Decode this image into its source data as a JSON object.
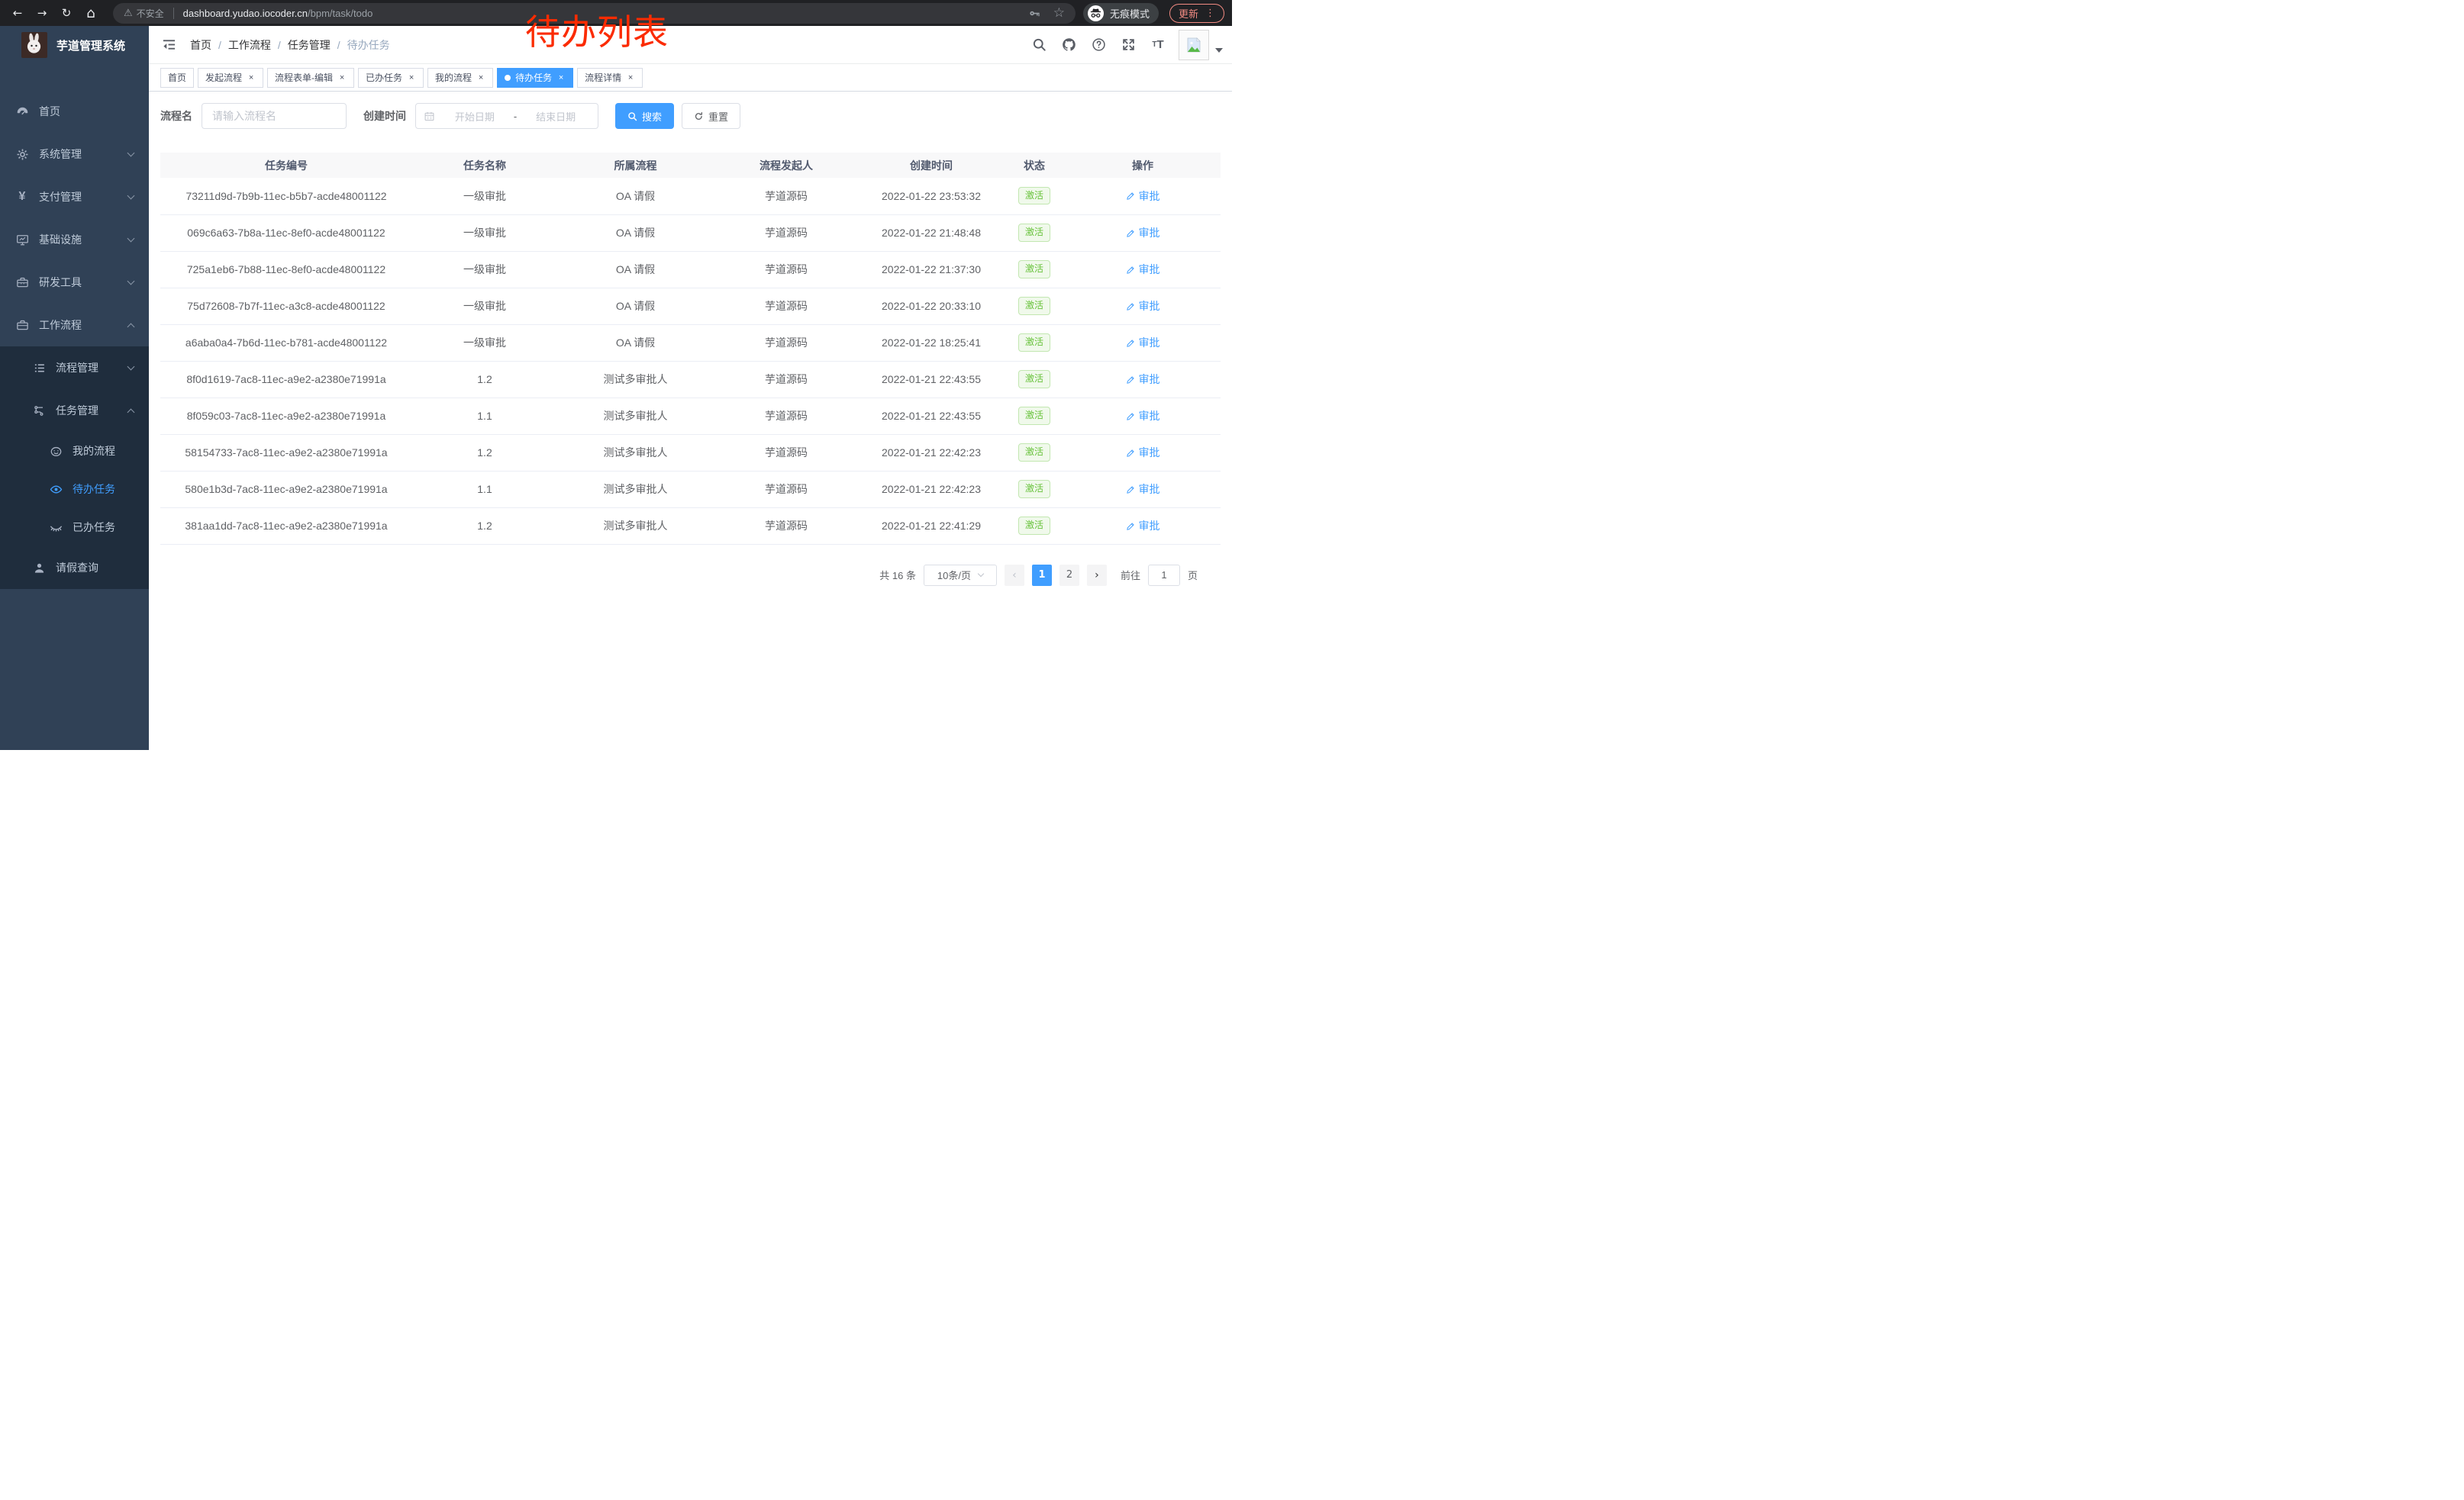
{
  "browser": {
    "back_icon": "←",
    "forward_icon": "→",
    "reload_icon": "↻",
    "home_icon": "⌂",
    "security_warning_icon": "⚠",
    "security_warning": "不安全",
    "url_host": "dashboard.yudao.iocoder.cn",
    "url_path": "/bpm/task/todo",
    "star_icon": "☆",
    "incognito_label": "无痕模式",
    "update_label": "更新",
    "menu_dots_icon": "⋮"
  },
  "annotation": {
    "text": "待办列表",
    "color": "#fb2b01"
  },
  "sidebar": {
    "logo_title": "芋道管理系统",
    "menu": [
      {
        "key": "home",
        "label": "首页",
        "icon": "dashboard-icon",
        "level": 1
      },
      {
        "key": "system",
        "label": "系统管理",
        "icon": "gear-icon",
        "level": 1,
        "chevron": "down"
      },
      {
        "key": "payment",
        "label": "支付管理",
        "icon": "yen-icon",
        "level": 1,
        "chevron": "down"
      },
      {
        "key": "infra",
        "label": "基础设施",
        "icon": "monitor-icon",
        "level": 1,
        "chevron": "down"
      },
      {
        "key": "devtools",
        "label": "研发工具",
        "icon": "toolbox-icon",
        "level": 1,
        "chevron": "down"
      },
      {
        "key": "workflow",
        "label": "工作流程",
        "icon": "briefcase-icon",
        "level": 1,
        "chevron": "up"
      },
      {
        "key": "process-mgmt",
        "label": "流程管理",
        "icon": "list-icon",
        "level": 2,
        "chevron": "down",
        "dark": true
      },
      {
        "key": "task-mgmt",
        "label": "任务管理",
        "icon": "flow-tree-icon",
        "level": 2,
        "chevron": "up",
        "dark": true
      },
      {
        "key": "my-process",
        "label": "我的流程",
        "icon": "face-icon",
        "level": 3,
        "dark": true
      },
      {
        "key": "todo-task",
        "label": "待办任务",
        "icon": "eye-icon",
        "level": 3,
        "dark": true,
        "active": true
      },
      {
        "key": "done-task",
        "label": "已办任务",
        "icon": "eye-closed-icon",
        "level": 3,
        "dark": true
      },
      {
        "key": "leave-query",
        "label": "请假查询",
        "icon": "user-icon",
        "level": 2,
        "dark": true
      }
    ]
  },
  "header": {
    "breadcrumb": [
      "首页",
      "工作流程",
      "任务管理",
      "待办任务"
    ],
    "separator": "/"
  },
  "tabs": [
    {
      "label": "首页",
      "closable": false
    },
    {
      "label": "发起流程",
      "closable": true
    },
    {
      "label": "流程表单-编辑",
      "closable": true
    },
    {
      "label": "已办任务",
      "closable": true
    },
    {
      "label": "我的流程",
      "closable": true
    },
    {
      "label": "待办任务",
      "closable": true,
      "active": true
    },
    {
      "label": "流程详情",
      "closable": true
    }
  ],
  "filters": {
    "name_label": "流程名",
    "name_placeholder": "请输入流程名",
    "time_label": "创建时间",
    "start_placeholder": "开始日期",
    "range_separator": "-",
    "end_placeholder": "结束日期",
    "search_label": "搜索",
    "reset_label": "重置"
  },
  "table": {
    "columns": [
      "任务编号",
      "任务名称",
      "所属流程",
      "流程发起人",
      "创建时间",
      "状态",
      "操作"
    ],
    "rows": [
      {
        "id": "73211d9d-7b9b-11ec-b5b7-acde48001122",
        "name": "一级审批",
        "process": "OA 请假",
        "starter": "芋道源码",
        "time": "2022-01-22 23:53:32",
        "status": "激活",
        "action": "审批"
      },
      {
        "id": "069c6a63-7b8a-11ec-8ef0-acde48001122",
        "name": "一级审批",
        "process": "OA 请假",
        "starter": "芋道源码",
        "time": "2022-01-22 21:48:48",
        "status": "激活",
        "action": "审批"
      },
      {
        "id": "725a1eb6-7b88-11ec-8ef0-acde48001122",
        "name": "一级审批",
        "process": "OA 请假",
        "starter": "芋道源码",
        "time": "2022-01-22 21:37:30",
        "status": "激活",
        "action": "审批"
      },
      {
        "id": "75d72608-7b7f-11ec-a3c8-acde48001122",
        "name": "一级审批",
        "process": "OA 请假",
        "starter": "芋道源码",
        "time": "2022-01-22 20:33:10",
        "status": "激活",
        "action": "审批"
      },
      {
        "id": "a6aba0a4-7b6d-11ec-b781-acde48001122",
        "name": "一级审批",
        "process": "OA 请假",
        "starter": "芋道源码",
        "time": "2022-01-22 18:25:41",
        "status": "激活",
        "action": "审批"
      },
      {
        "id": "8f0d1619-7ac8-11ec-a9e2-a2380e71991a",
        "name": "1.2",
        "process": "测试多审批人",
        "starter": "芋道源码",
        "time": "2022-01-21 22:43:55",
        "status": "激活",
        "action": "审批"
      },
      {
        "id": "8f059c03-7ac8-11ec-a9e2-a2380e71991a",
        "name": "1.1",
        "process": "测试多审批人",
        "starter": "芋道源码",
        "time": "2022-01-21 22:43:55",
        "status": "激活",
        "action": "审批"
      },
      {
        "id": "58154733-7ac8-11ec-a9e2-a2380e71991a",
        "name": "1.2",
        "process": "测试多审批人",
        "starter": "芋道源码",
        "time": "2022-01-21 22:42:23",
        "status": "激活",
        "action": "审批"
      },
      {
        "id": "580e1b3d-7ac8-11ec-a9e2-a2380e71991a",
        "name": "1.1",
        "process": "测试多审批人",
        "starter": "芋道源码",
        "time": "2022-01-21 22:42:23",
        "status": "激活",
        "action": "审批"
      },
      {
        "id": "381aa1dd-7ac8-11ec-a9e2-a2380e71991a",
        "name": "1.2",
        "process": "测试多审批人",
        "starter": "芋道源码",
        "time": "2022-01-21 22:41:29",
        "status": "激活",
        "action": "审批"
      }
    ]
  },
  "pagination": {
    "total_label": "共 16 条",
    "page_size_label": "10条/页",
    "prev_icon": "‹",
    "next_icon": "›",
    "pages": [
      "1",
      "2"
    ],
    "active_page": "1",
    "goto_label": "前往",
    "goto_value": "1",
    "page_unit": "页"
  },
  "colors": {
    "accent_blue": "#409eff",
    "sidebar_bg": "#304156",
    "submenu_bg": "#1f2d3d",
    "status_green": "#67c23a",
    "annotation_red": "#fb2b01"
  }
}
